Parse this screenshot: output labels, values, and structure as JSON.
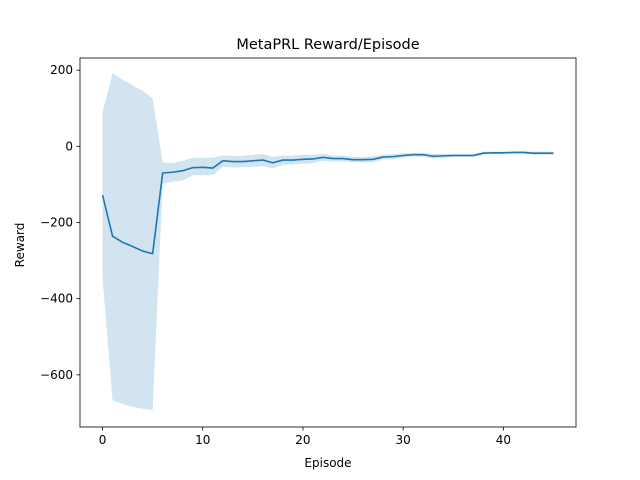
{
  "chart_data": {
    "type": "line",
    "title": "MetaPRL Reward/Episode",
    "xlabel": "Episode",
    "ylabel": "Reward",
    "xlim": [
      -2.25,
      47.25
    ],
    "ylim": [
      -737,
      232
    ],
    "xticks": [
      0,
      10,
      20,
      30,
      40
    ],
    "yticks": [
      200,
      0,
      -200,
      -400,
      -600
    ],
    "xtick_labels": [
      "0",
      "10",
      "20",
      "30",
      "40"
    ],
    "ytick_labels": [
      "200",
      "0",
      "−200",
      "−400",
      "−600"
    ],
    "grid": false,
    "colors": {
      "line": "#1f77b4",
      "band": "#1f77b4"
    },
    "x": [
      0,
      1,
      2,
      3,
      4,
      5,
      6,
      7,
      8,
      9,
      10,
      11,
      12,
      13,
      14,
      15,
      16,
      17,
      18,
      19,
      20,
      21,
      22,
      23,
      24,
      25,
      26,
      27,
      28,
      29,
      30,
      31,
      32,
      33,
      34,
      35,
      36,
      37,
      38,
      39,
      40,
      41,
      42,
      43,
      44,
      45
    ],
    "series": [
      {
        "values": [
          -128,
          -236,
          -252,
          -263,
          -275,
          -282,
          -70,
          -68,
          -64,
          -56,
          -55,
          -57,
          -38,
          -40,
          -40,
          -38,
          -36,
          -43,
          -36,
          -36,
          -34,
          -33,
          -29,
          -32,
          -32,
          -35,
          -35,
          -34,
          -28,
          -27,
          -24,
          -22,
          -22,
          -26,
          -25,
          -24,
          -24,
          -24,
          -18,
          -17,
          -17,
          -16,
          -16,
          -18,
          -18,
          -18
        ],
        "band_upper": [
          90,
          192,
          175,
          160,
          146,
          126,
          -42,
          -44,
          -38,
          -30,
          -30,
          -30,
          -24,
          -25,
          -25,
          -22,
          -20,
          -28,
          -24,
          -24,
          -22,
          -22,
          -20,
          -24,
          -24,
          -28,
          -28,
          -26,
          -22,
          -20,
          -18,
          -17,
          -17,
          -20,
          -20,
          -20,
          -20,
          -20,
          -14,
          -14,
          -14,
          -13,
          -13,
          -14,
          -14,
          -14
        ],
        "band_lower": [
          -346,
          -667,
          -677,
          -684,
          -689,
          -692,
          -98,
          -93,
          -90,
          -76,
          -76,
          -76,
          -54,
          -56,
          -55,
          -54,
          -52,
          -58,
          -48,
          -48,
          -46,
          -44,
          -38,
          -40,
          -40,
          -42,
          -42,
          -42,
          -34,
          -34,
          -30,
          -27,
          -27,
          -32,
          -30,
          -28,
          -28,
          -28,
          -22,
          -20,
          -20,
          -19,
          -19,
          -22,
          -22,
          -22
        ]
      }
    ]
  }
}
